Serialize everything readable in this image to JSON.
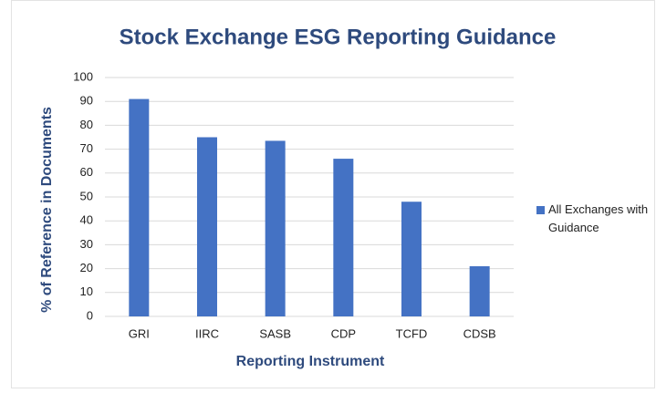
{
  "chart_data": {
    "type": "bar",
    "title": "Stock Exchange ESG Reporting Guidance",
    "x_label": "Reporting Instrument",
    "y_label": "% of Reference in Documents",
    "categories": [
      "GRI",
      "IIRC",
      "SASB",
      "CDP",
      "TCFD",
      "CDSB"
    ],
    "series": [
      {
        "name": "All Exchanges with Guidance",
        "color": "#4472c4",
        "values": [
          91,
          75,
          73.5,
          66,
          48,
          21
        ]
      }
    ],
    "ylim": [
      0,
      100
    ],
    "yticks": [
      0,
      10,
      20,
      30,
      40,
      50,
      60,
      70,
      80,
      90,
      100
    ],
    "grid": true,
    "legend": "right"
  }
}
